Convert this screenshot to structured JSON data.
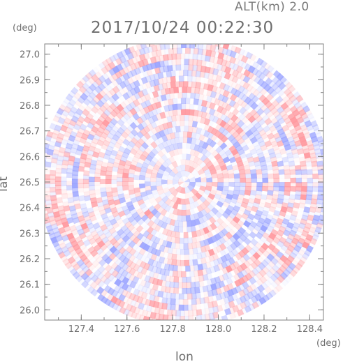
{
  "header": {
    "alt_label": "ALT(km) 2.0",
    "datetime": "2017/10/24 00:22:30"
  },
  "axes": {
    "x_unit": "(deg)",
    "y_unit": "(deg)",
    "x_title": "lon",
    "y_title": "lat"
  },
  "chart_data": {
    "type": "heatmap",
    "description_of_field": "polar radar scan, alternating positive/negative values",
    "xlabel": "lon",
    "ylabel": "lat",
    "xlim": [
      127.24,
      128.46
    ],
    "ylim": [
      25.96,
      27.04
    ],
    "x_ticks": [
      127.4,
      127.6,
      127.8,
      128.0,
      128.2,
      128.4
    ],
    "x_tick_labels": [
      "127.4",
      "127.6",
      "127.8",
      "128.0",
      "128.2",
      "128.4"
    ],
    "y_ticks": [
      26.0,
      26.1,
      26.2,
      26.3,
      26.4,
      26.5,
      26.6,
      26.7,
      26.8,
      26.9,
      27.0
    ],
    "y_tick_labels": [
      "26.0",
      "26.1",
      "26.2",
      "26.3",
      "26.4",
      "26.5",
      "26.6",
      "26.7",
      "26.8",
      "26.9",
      "27.0"
    ],
    "center": {
      "lon": 127.85,
      "lat": 26.5
    },
    "colors": {
      "positive": "#ff9aa0",
      "negative": "#9ba4ff",
      "zero": "#ffffff",
      "axis": "#808080"
    }
  }
}
